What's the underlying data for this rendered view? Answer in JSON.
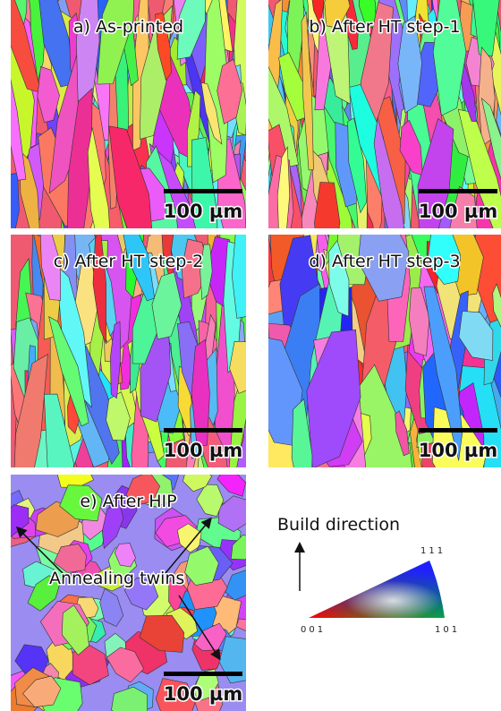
{
  "panels": [
    {
      "label": "a) As-printed",
      "scale_bar": "100 µm"
    },
    {
      "label": "b) After HT step-1",
      "scale_bar": "100 µm"
    },
    {
      "label": "c) After HT step-2",
      "scale_bar": "100 µm"
    },
    {
      "label": "d) After HT step-3",
      "scale_bar": "100 µm"
    },
    {
      "label": "e) After HIP",
      "scale_bar": "100 µm"
    }
  ],
  "annotation": "Annealing twins",
  "legend": {
    "title": "Build direction",
    "corner_111": "111",
    "corner_001": "001",
    "corner_101": "101"
  }
}
